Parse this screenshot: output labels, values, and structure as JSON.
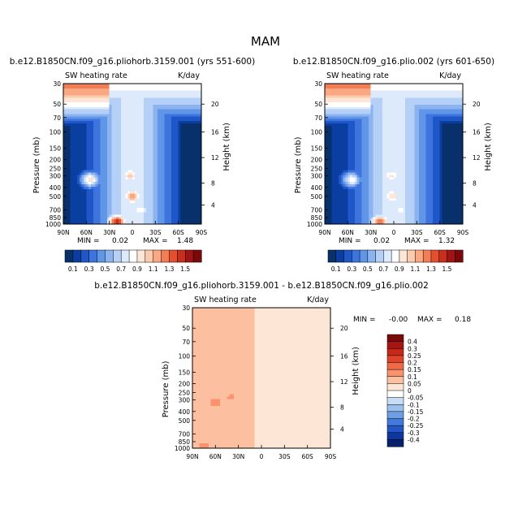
{
  "page_title": "MAM",
  "chart_data": [
    {
      "type": "contour",
      "title": "b.e12.B1850CN.f09_g16.pliohorb.3159.001 (yrs 551-600)",
      "subtitle_left": "SW heating rate",
      "subtitle_right": "K/day",
      "xlabel": "",
      "ylabel": "Pressure (mb)",
      "ylabel_right": "Height (km)",
      "x_ticks": [
        "90N",
        "60N",
        "30N",
        "0",
        "30S",
        "60S",
        "90S"
      ],
      "y_ticks": [
        "30",
        "50",
        "70",
        "100",
        "150",
        "200",
        "250",
        "300",
        "400",
        "500",
        "700",
        "850",
        "1000"
      ],
      "right_ticks": [
        "20",
        "16",
        "12",
        "8",
        "4"
      ],
      "ylim": [
        30,
        1000
      ],
      "min_label": "MIN =",
      "min_value": "0.02",
      "max_label": "MAX =",
      "max_value": "1.48",
      "colorbar_labels": [
        "0.1",
        "0.3",
        "0.5",
        "0.7",
        "0.9",
        "1.1",
        "1.3",
        "1.5"
      ],
      "colorbar_colors": [
        "#08306b",
        "#0a3ea0",
        "#1f56c8",
        "#3d74dd",
        "#6195e8",
        "#8ab3ef",
        "#b5d0f6",
        "#ddeafb",
        "#ffffff",
        "#fde6d6",
        "#fccbae",
        "#f9a882",
        "#f27d56",
        "#e4502f",
        "#c72e1b",
        "#a01414",
        "#7a0a0a"
      ],
      "hotspots": [
        {
          "lat": 20,
          "p": 950,
          "v": 1.45
        },
        {
          "lat": 0,
          "p": 500,
          "v": 1.2
        },
        {
          "lat": 3,
          "p": 300,
          "v": 1.05
        },
        {
          "lat": 55,
          "p": 330,
          "v": 0.95
        },
        {
          "lat": -10,
          "p": 700,
          "v": 0.9
        }
      ]
    },
    {
      "type": "contour",
      "title": "b.e12.B1850CN.f09_g16.plio.002 (yrs 601-650)",
      "subtitle_left": "SW heating rate",
      "subtitle_right": "K/day",
      "xlabel": "",
      "ylabel": "Pressure (mb)",
      "ylabel_right": "Height (km)",
      "x_ticks": [
        "90N",
        "60N",
        "30N",
        "0",
        "30S",
        "60S",
        "90S"
      ],
      "y_ticks": [
        "30",
        "50",
        "70",
        "100",
        "150",
        "200",
        "250",
        "300",
        "400",
        "500",
        "700",
        "850",
        "1000"
      ],
      "right_ticks": [
        "20",
        "16",
        "12",
        "8",
        "4"
      ],
      "ylim": [
        30,
        1000
      ],
      "min_label": "MIN =",
      "min_value": "0.02",
      "max_label": "MAX =",
      "max_value": "1.32",
      "colorbar_labels": [
        "0.1",
        "0.3",
        "0.5",
        "0.7",
        "0.9",
        "1.1",
        "1.3",
        "1.5"
      ],
      "colorbar_colors": [
        "#08306b",
        "#0a3ea0",
        "#1f56c8",
        "#3d74dd",
        "#6195e8",
        "#8ab3ef",
        "#b5d0f6",
        "#ddeafb",
        "#ffffff",
        "#fde6d6",
        "#fccbae",
        "#f9a882",
        "#f27d56",
        "#e4502f",
        "#c72e1b",
        "#a01414",
        "#7a0a0a"
      ],
      "hotspots": [
        {
          "lat": 18,
          "p": 950,
          "v": 1.3
        },
        {
          "lat": 2,
          "p": 500,
          "v": 1.0
        },
        {
          "lat": 3,
          "p": 300,
          "v": 0.95
        },
        {
          "lat": 55,
          "p": 330,
          "v": 0.85
        },
        {
          "lat": -10,
          "p": 700,
          "v": 0.85
        }
      ]
    },
    {
      "type": "contour",
      "title": "b.e12.B1850CN.f09_g16.pliohorb.3159.001 - b.e12.B1850CN.f09_g16.plio.002",
      "subtitle_left": "SW heating rate",
      "subtitle_right": "K/day",
      "xlabel": "",
      "ylabel": "Pressure (mb)",
      "ylabel_right": "Height (km)",
      "x_ticks": [
        "90N",
        "60N",
        "30N",
        "0",
        "30S",
        "60S",
        "90S"
      ],
      "y_ticks": [
        "30",
        "50",
        "70",
        "100",
        "150",
        "200",
        "250",
        "300",
        "400",
        "500",
        "700",
        "850",
        "1000"
      ],
      "right_ticks": [
        "20",
        "16",
        "12",
        "8",
        "4"
      ],
      "ylim": [
        30,
        1000
      ],
      "min_label": "MIN =",
      "min_value": "-0.00",
      "max_label": "MAX =",
      "max_value": "0.18",
      "colorbar_labels": [
        "0.4",
        "0.3",
        "0.25",
        "0.2",
        "0.15",
        "0.1",
        "0.05",
        "0",
        "-0.05",
        "-0.1",
        "-0.15",
        "-0.2",
        "-0.25",
        "-0.3",
        "-0.4"
      ],
      "colorbar_colors": [
        "#7a0a0a",
        "#a81414",
        "#c8281a",
        "#e0432c",
        "#f06a48",
        "#f8936e",
        "#fcc0a0",
        "#fde6d6",
        "#ffffff",
        "#c7dcf5",
        "#9cc0ee",
        "#6d9ee6",
        "#4279dc",
        "#2456c8",
        "#0e36a0",
        "#08206b"
      ],
      "hotspots": [
        {
          "lat": 60,
          "p": 320,
          "v": 0.12
        },
        {
          "lat": 40,
          "p": 280,
          "v": 0.11
        },
        {
          "lat": 75,
          "p": 960,
          "v": 0.12
        },
        {
          "lat": 20,
          "p": 960,
          "v": 0.1
        }
      ]
    }
  ]
}
